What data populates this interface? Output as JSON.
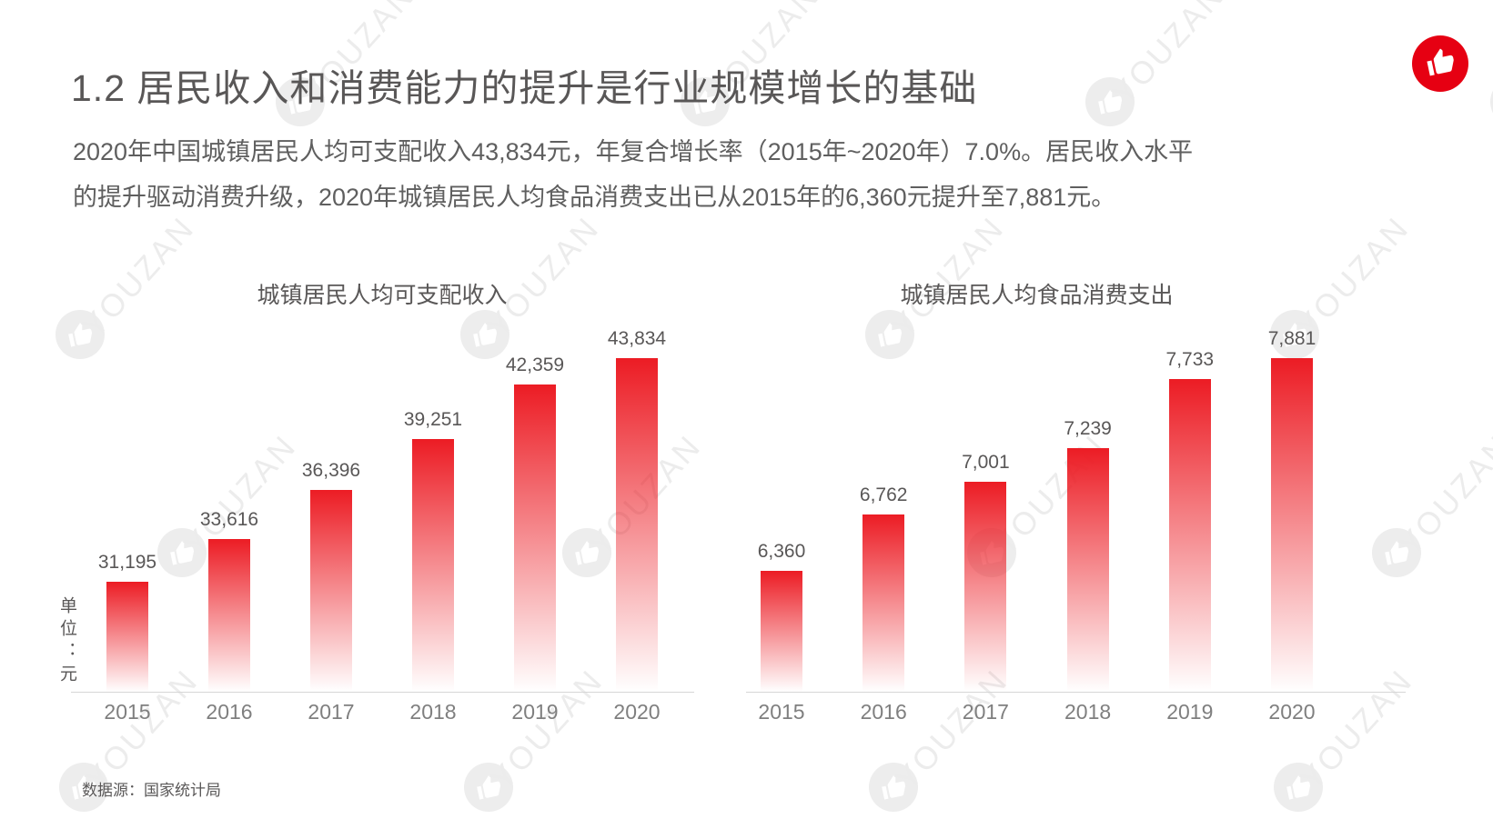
{
  "page": {
    "title": "1.2 居民收入和消费能力的提升是行业规模增长的基础",
    "paragraph_lines": [
      "2020年中国城镇居民人均可支配收入43,834元，年复合增长率（2015年~2020年）7.0%。居民收入水平",
      "的提升驱动消费升级，2020年城镇居民人均食品消费支出已从2015年的6,360元提升至7,881元。"
    ],
    "unit_label": "单位：元",
    "source_note": "数据源：国家统计局",
    "watermark_text": "YOUZAN",
    "brand_logo": "thumbs-up-icon",
    "colors": {
      "brand_red": "#e60012",
      "bar_top_red": "#ec1c24",
      "text_gray": "#595757",
      "axis_gray": "#d6d6d6"
    }
  },
  "chart_data": [
    {
      "type": "bar",
      "title": "城镇居民人均可支配收入",
      "categories": [
        "2015",
        "2016",
        "2017",
        "2018",
        "2019",
        "2020"
      ],
      "values": [
        31195,
        33616,
        36396,
        39251,
        42359,
        43834
      ],
      "value_labels": [
        "31,195",
        "33,616",
        "36,396",
        "39,251",
        "42,359",
        "43,834"
      ],
      "unit": "元",
      "ylim": [
        25000,
        44000
      ],
      "grid": false,
      "legend": "none",
      "bar_style": "red fading to white at base"
    },
    {
      "type": "bar",
      "title": "城镇居民人均食品消费支出",
      "categories": [
        "2015",
        "2016",
        "2017",
        "2018",
        "2019",
        "2020"
      ],
      "values": [
        6360,
        6762,
        7001,
        7239,
        7733,
        7881
      ],
      "value_labels": [
        "6,360",
        "6,762",
        "7,001",
        "7,239",
        "7,733",
        "7,881"
      ],
      "unit": "元",
      "ylim": [
        5500,
        7900
      ],
      "grid": false,
      "legend": "none",
      "bar_style": "red fading to white at base"
    }
  ]
}
